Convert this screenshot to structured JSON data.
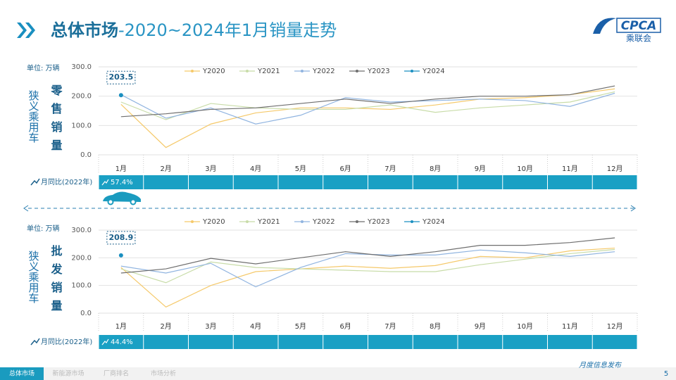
{
  "header": {
    "title_main": "总体市场",
    "title_rest": "-2020~2024年1月销量走势",
    "logo_name": "CPCA",
    "logo_sub": "乘联会"
  },
  "footer": {
    "tabs": [
      "总体市场",
      "新能源市场",
      "厂商排名",
      "市场分析"
    ],
    "note": "月度信息发布",
    "page": "5"
  },
  "chart_data": [
    {
      "type": "line",
      "title": "零售销量",
      "group_label": "狭义乘用车",
      "ylabel": "单位: 万辆",
      "categories": [
        "1月",
        "2月",
        "3月",
        "4月",
        "5月",
        "6月",
        "7月",
        "8月",
        "9月",
        "10月",
        "11月",
        "12月"
      ],
      "ylim": [
        0,
        300
      ],
      "yticks": [
        {
          "value": 0,
          "label": "0.0"
        },
        {
          "value": 100,
          "label": "100.0"
        },
        {
          "value": 200,
          "label": "200.0"
        },
        {
          "value": 300,
          "label": "300.0"
        }
      ],
      "grid": true,
      "series": [
        {
          "name": "Y2020",
          "color": "#f5c96a",
          "values": [
            172,
            25,
            105,
            143,
            160,
            160,
            155,
            170,
            190,
            195,
            205,
            225
          ]
        },
        {
          "name": "Y2021",
          "color": "#c8dca8",
          "values": [
            180,
            120,
            175,
            160,
            155,
            155,
            170,
            145,
            160,
            170,
            180,
            215
          ]
        },
        {
          "name": "Y2022",
          "color": "#90b4e0",
          "values": [
            205,
            125,
            160,
            105,
            135,
            195,
            180,
            185,
            190,
            185,
            165,
            210
          ]
        },
        {
          "name": "Y2023",
          "color": "#6e6e6e",
          "values": [
            130,
            140,
            155,
            160,
            175,
            190,
            175,
            190,
            200,
            200,
            205,
            235
          ]
        },
        {
          "name": "Y2024",
          "color": "#1a8fc0",
          "values": [
            203.5,
            null,
            null,
            null,
            null,
            null,
            null,
            null,
            null,
            null,
            null,
            null
          ]
        }
      ],
      "yoy": {
        "label": "月同比(2022年)",
        "values": [
          "57.4%"
        ]
      }
    },
    {
      "type": "line",
      "title": "批发销量",
      "group_label": "狭义乘用车",
      "ylabel": "单位: 万辆",
      "categories": [
        "1月",
        "2月",
        "3月",
        "4月",
        "5月",
        "6月",
        "7月",
        "8月",
        "9月",
        "10月",
        "11月",
        "12月"
      ],
      "ylim": [
        0,
        300
      ],
      "yticks": [
        {
          "value": 0,
          "label": "0.0"
        },
        {
          "value": 100,
          "label": "100.0"
        },
        {
          "value": 200,
          "label": "200.0"
        },
        {
          "value": 300,
          "label": "300.0"
        }
      ],
      "grid": true,
      "series": [
        {
          "name": "Y2020",
          "color": "#f5c96a",
          "values": [
            165,
            22,
            100,
            150,
            160,
            170,
            162,
            172,
            205,
            200,
            225,
            235
          ]
        },
        {
          "name": "Y2021",
          "color": "#c8dca8",
          "values": [
            160,
            110,
            185,
            165,
            160,
            155,
            150,
            150,
            175,
            195,
            215,
            230
          ]
        },
        {
          "name": "Y2022",
          "color": "#90b4e0",
          "values": [
            170,
            145,
            180,
            95,
            165,
            215,
            210,
            210,
            228,
            218,
            205,
            222
          ]
        },
        {
          "name": "Y2023",
          "color": "#6e6e6e",
          "values": [
            145,
            160,
            198,
            178,
            200,
            222,
            205,
            222,
            245,
            245,
            255,
            272
          ]
        },
        {
          "name": "Y2024",
          "color": "#1a8fc0",
          "values": [
            208.9,
            null,
            null,
            null,
            null,
            null,
            null,
            null,
            null,
            null,
            null,
            null
          ]
        }
      ],
      "yoy": {
        "label": "月同比(2022年)",
        "values": [
          "44.4%"
        ]
      }
    }
  ]
}
